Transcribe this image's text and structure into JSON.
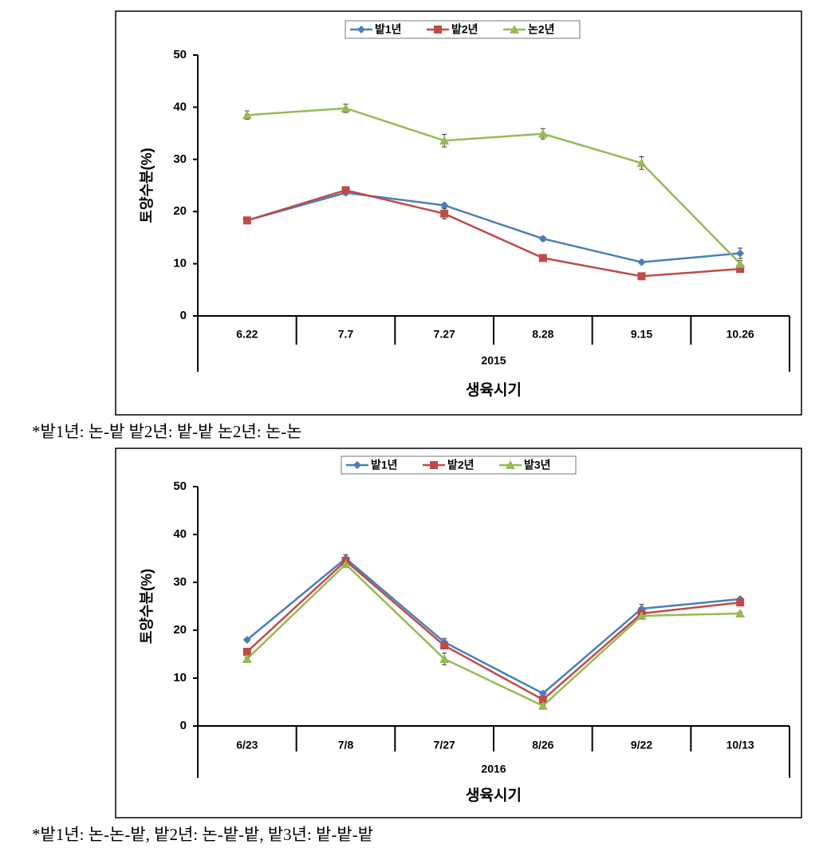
{
  "chart_data": [
    {
      "type": "line",
      "ylabel": "토양수분(%)",
      "xlabel": "생육시기",
      "x_group_label": "2015",
      "categories": [
        "6.22",
        "7.7",
        "7.27",
        "8.28",
        "9.15",
        "10.26"
      ],
      "ylim": [
        0,
        50
      ],
      "yticks": [
        0,
        10,
        20,
        30,
        40,
        50
      ],
      "legend": "top",
      "series": [
        {
          "name": "밭1년",
          "color": "#4a7ebb",
          "marker": "diamond",
          "values": [
            18.3,
            23.6,
            21.2,
            14.8,
            10.3,
            12.0
          ],
          "errors": [
            0.3,
            0.4,
            0.4,
            0.4,
            0.3,
            1.0
          ]
        },
        {
          "name": "밭2년",
          "color": "#be4b48",
          "marker": "square",
          "values": [
            18.3,
            24.1,
            19.6,
            11.1,
            7.6,
            9.0
          ],
          "errors": [
            0.3,
            0.5,
            1.0,
            0.3,
            0.3,
            0.4
          ]
        },
        {
          "name": "논2년",
          "color": "#98b954",
          "marker": "triangle",
          "values": [
            38.5,
            39.8,
            33.6,
            34.9,
            29.3,
            10.0
          ],
          "errors": [
            0.8,
            0.8,
            1.2,
            1.0,
            1.2,
            0.6
          ]
        }
      ]
    },
    {
      "type": "line",
      "ylabel": "토양수분(%)",
      "xlabel": "생육시기",
      "x_group_label": "2016",
      "categories": [
        "6/23",
        "7/8",
        "7/27",
        "8/26",
        "9/22",
        "10/13"
      ],
      "ylim": [
        0,
        50
      ],
      "yticks": [
        0,
        10,
        20,
        30,
        40,
        50
      ],
      "legend": "top",
      "series": [
        {
          "name": "밭1년",
          "color": "#4a7ebb",
          "marker": "diamond",
          "values": [
            18.0,
            35.0,
            17.5,
            6.8,
            24.5,
            26.5
          ],
          "errors": [
            0.3,
            0.8,
            0.8,
            0.3,
            0.9,
            0.4
          ]
        },
        {
          "name": "밭2년",
          "color": "#be4b48",
          "marker": "square",
          "values": [
            15.5,
            34.5,
            16.8,
            5.5,
            23.5,
            25.8
          ],
          "errors": [
            0.4,
            0.6,
            0.6,
            0.3,
            0.5,
            0.4
          ]
        },
        {
          "name": "밭3년",
          "color": "#98b954",
          "marker": "triangle",
          "values": [
            14.0,
            33.8,
            14.0,
            4.2,
            23.0,
            23.5
          ],
          "errors": [
            0.4,
            0.5,
            1.2,
            0.3,
            0.4,
            0.3
          ]
        }
      ]
    }
  ],
  "notes": [
    "*밭1년: 논-밭 밭2년: 밭-밭 논2년: 논-논",
    "*밭1년: 논-논-밭, 밭2년: 논-밭-밭, 밭3년: 밭-밭-밭"
  ]
}
